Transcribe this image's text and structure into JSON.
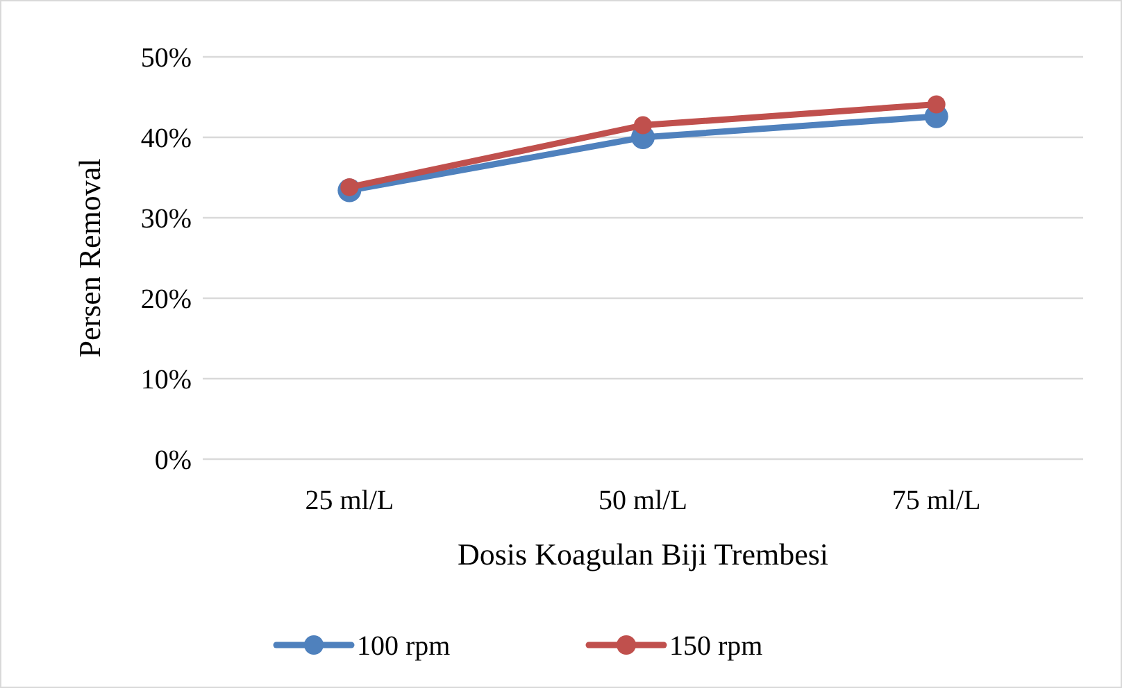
{
  "chart_data": {
    "type": "line",
    "xlabel": "Dosis Koagulan Biji Trembesi",
    "ylabel": "Persen Removal",
    "categories": [
      "25 ml/L",
      "50 ml/L",
      "75 ml/L"
    ],
    "series": [
      {
        "name": "100 rpm",
        "color": "#4f81bd",
        "values": [
          33.4,
          40,
          42.6
        ]
      },
      {
        "name": "150 rpm",
        "color": "#c0504d",
        "values": [
          33.8,
          41.5,
          44.1
        ]
      }
    ],
    "ylim": [
      0,
      50
    ],
    "yticks": [
      {
        "value": 0,
        "label": "0%"
      },
      {
        "value": 10,
        "label": "10%"
      },
      {
        "value": 20,
        "label": "20%"
      },
      {
        "value": 30,
        "label": "30%"
      },
      {
        "value": 40,
        "label": "40%"
      },
      {
        "value": 50,
        "label": "50%"
      }
    ],
    "grid": "y",
    "legend": "bottom",
    "marker": "circle",
    "line_style": "solid"
  }
}
